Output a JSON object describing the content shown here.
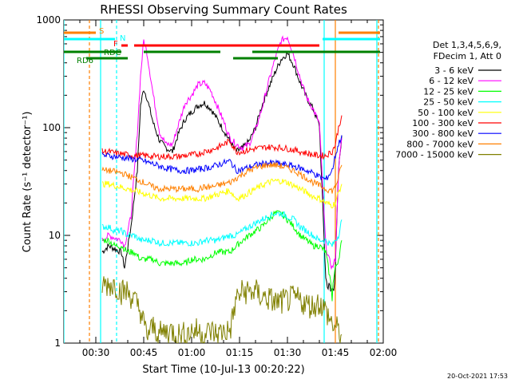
{
  "chart_data": {
    "type": "line",
    "title": "RHESSI Observing Summary Count Rates",
    "xlabel": "Start Time (10-Jul-13 00:20:22)",
    "ylabel": "Count Rate (s⁻¹ detector⁻¹)",
    "x_unit": "minutes after 00:20",
    "xlim": [
      0,
      100
    ],
    "ylim": [
      1,
      1000
    ],
    "yscale": "log",
    "x_ticks": [
      {
        "at": 10,
        "label": "00:30"
      },
      {
        "at": 25,
        "label": "00:45"
      },
      {
        "at": 40,
        "label": "01:00"
      },
      {
        "at": 55,
        "label": "01:15"
      },
      {
        "at": 70,
        "label": "01:30"
      },
      {
        "at": 85,
        "label": "01:45"
      },
      {
        "at": 100,
        "label": "02:00"
      }
    ],
    "y_ticks": [
      {
        "at": 1,
        "label": "1"
      },
      {
        "at": 10,
        "label": "10"
      },
      {
        "at": 100,
        "label": "100"
      },
      {
        "at": 1000,
        "label": "1000"
      }
    ],
    "legend_header": [
      "Det 1,3,4,5,6,9,",
      "FDecim 1, Att 0"
    ],
    "legend_position": "right",
    "series": [
      {
        "name": "3 - 6 keV",
        "color": "#000000",
        "x": [
          12,
          14,
          18,
          19,
          21,
          23,
          24,
          25,
          26,
          28,
          30,
          32,
          34,
          36,
          38,
          40,
          42,
          44,
          46,
          48,
          50,
          52,
          54,
          56,
          58,
          60,
          62,
          64,
          66,
          68,
          70,
          72,
          74,
          76,
          78,
          80,
          82,
          83,
          84,
          85,
          86,
          87
        ],
        "y": [
          7,
          8,
          7,
          5,
          12,
          40,
          160,
          230,
          190,
          110,
          75,
          65,
          60,
          90,
          120,
          140,
          160,
          170,
          150,
          120,
          95,
          75,
          60,
          65,
          75,
          100,
          160,
          230,
          320,
          430,
          490,
          380,
          260,
          190,
          150,
          105,
          4,
          3,
          3,
          5,
          40,
          85
        ]
      },
      {
        "name": "6 - 12 keV",
        "color": "#ff00ff",
        "x": [
          12,
          14,
          18,
          19,
          21,
          23,
          24,
          25,
          26,
          28,
          30,
          32,
          34,
          36,
          38,
          40,
          42,
          44,
          46,
          48,
          50,
          52,
          54,
          56,
          58,
          60,
          62,
          64,
          66,
          68,
          70,
          72,
          74,
          76,
          78,
          80,
          82,
          83,
          84,
          85,
          86,
          87
        ],
        "y": [
          9,
          10,
          9,
          8,
          15,
          90,
          300,
          650,
          500,
          200,
          90,
          70,
          70,
          110,
          170,
          200,
          250,
          260,
          220,
          160,
          115,
          80,
          70,
          65,
          70,
          95,
          150,
          260,
          420,
          640,
          700,
          470,
          290,
          190,
          150,
          110,
          8,
          6,
          5,
          6,
          40,
          80
        ]
      },
      {
        "name": "12 - 25 keV",
        "color": "#00ff00",
        "x": [
          12,
          14,
          16,
          18,
          20,
          22,
          24,
          26,
          28,
          30,
          32,
          34,
          36,
          38,
          40,
          42,
          44,
          46,
          48,
          50,
          52,
          54,
          56,
          58,
          60,
          62,
          64,
          66,
          68,
          70,
          72,
          74,
          76,
          78,
          80,
          82,
          84,
          85,
          86,
          87
        ],
        "y": [
          9,
          9,
          8,
          8,
          7,
          7,
          6,
          6,
          6,
          5.5,
          5.5,
          5.5,
          5.5,
          5.5,
          6,
          6,
          6,
          6.5,
          7,
          7,
          7,
          8,
          9,
          10,
          11,
          12,
          14,
          16,
          16,
          14,
          12,
          10,
          9,
          8,
          8,
          7,
          3,
          5,
          6,
          9
        ]
      },
      {
        "name": "25 - 50 keV",
        "color": "#00ffff",
        "x": [
          12,
          14,
          16,
          18,
          20,
          22,
          24,
          26,
          28,
          30,
          32,
          34,
          36,
          38,
          40,
          42,
          44,
          46,
          48,
          50,
          52,
          54,
          56,
          58,
          60,
          62,
          64,
          66,
          68,
          70,
          72,
          74,
          76,
          78,
          80,
          82,
          84,
          85,
          86,
          87
        ],
        "y": [
          12,
          12,
          11,
          11,
          10,
          10,
          9,
          9,
          9,
          8.5,
          8.5,
          8.5,
          8.5,
          8.5,
          8.5,
          8.5,
          9,
          9,
          9,
          9.5,
          10,
          10,
          11,
          12,
          13,
          14,
          15,
          16,
          16,
          15,
          14,
          12,
          11,
          10,
          9,
          9,
          8,
          9,
          10,
          14
        ]
      },
      {
        "name": "50 - 100 keV",
        "color": "#ffff00",
        "x": [
          12,
          14,
          16,
          18,
          20,
          22,
          24,
          26,
          28,
          30,
          32,
          34,
          36,
          38,
          40,
          42,
          44,
          46,
          48,
          50,
          52,
          54,
          56,
          58,
          60,
          62,
          64,
          66,
          68,
          70,
          72,
          74,
          76,
          78,
          80,
          82,
          84,
          85,
          86,
          87
        ],
        "y": [
          30,
          30,
          29,
          28,
          27,
          26,
          25,
          24,
          23,
          22,
          22,
          22,
          22,
          22,
          22,
          22,
          22,
          23,
          24,
          25,
          26,
          22,
          23,
          25,
          27,
          29,
          31,
          32,
          32,
          31,
          29,
          27,
          25,
          23,
          22,
          20,
          19,
          20,
          25,
          30
        ]
      },
      {
        "name": "100 - 300 keV",
        "color": "#ff0000",
        "x": [
          12,
          14,
          16,
          18,
          20,
          22,
          24,
          26,
          28,
          30,
          32,
          34,
          36,
          38,
          40,
          42,
          44,
          46,
          48,
          50,
          52,
          54,
          56,
          58,
          60,
          62,
          64,
          66,
          68,
          70,
          72,
          74,
          76,
          78,
          80,
          82,
          84,
          85,
          86,
          87
        ],
        "y": [
          60,
          60,
          58,
          57,
          56,
          55,
          55,
          55,
          54,
          54,
          54,
          54,
          54,
          55,
          56,
          57,
          60,
          62,
          65,
          70,
          75,
          60,
          60,
          62,
          64,
          65,
          66,
          66,
          65,
          64,
          62,
          60,
          58,
          56,
          55,
          55,
          60,
          70,
          100,
          130
        ]
      },
      {
        "name": "300 - 800 keV",
        "color": "#0000ff",
        "x": [
          12,
          14,
          16,
          18,
          20,
          22,
          24,
          26,
          28,
          30,
          32,
          34,
          36,
          38,
          40,
          42,
          44,
          46,
          48,
          50,
          52,
          54,
          56,
          58,
          60,
          62,
          64,
          66,
          68,
          70,
          72,
          74,
          76,
          78,
          80,
          82,
          84,
          85,
          86,
          87
        ],
        "y": [
          55,
          55,
          54,
          53,
          52,
          51,
          50,
          48,
          46,
          44,
          42,
          41,
          40,
          40,
          40,
          41,
          42,
          43,
          45,
          47,
          49,
          40,
          41,
          43,
          45,
          46,
          47,
          47,
          46,
          45,
          44,
          42,
          40,
          38,
          35,
          33,
          40,
          55,
          70,
          85
        ]
      },
      {
        "name": "800 - 7000 keV",
        "color": "#ff8000",
        "x": [
          12,
          14,
          16,
          18,
          20,
          22,
          24,
          26,
          28,
          30,
          32,
          34,
          36,
          38,
          40,
          42,
          44,
          46,
          48,
          50,
          52,
          54,
          56,
          58,
          60,
          62,
          64,
          66,
          68,
          70,
          72,
          74,
          76,
          78,
          80,
          82,
          84,
          85,
          86,
          87
        ],
        "y": [
          40,
          40,
          39,
          38,
          36,
          34,
          32,
          30,
          28,
          27,
          27,
          27,
          27,
          27,
          27,
          27,
          28,
          28,
          29,
          30,
          31,
          34,
          37,
          40,
          42,
          44,
          45,
          45,
          44,
          42,
          40,
          37,
          34,
          31,
          29,
          27,
          26,
          28,
          35,
          45
        ]
      },
      {
        "name": "7000 - 15000 keV",
        "color": "#808000",
        "x": [
          12,
          14,
          16,
          18,
          20,
          22,
          24,
          25,
          26,
          28,
          30,
          32,
          34,
          36,
          38,
          40,
          42,
          44,
          46,
          48,
          50,
          52,
          53,
          54,
          56,
          58,
          60,
          62,
          64,
          66,
          68,
          70,
          72,
          74,
          76,
          78,
          80,
          82,
          84,
          86,
          87
        ],
        "y": [
          3.5,
          3.5,
          3.5,
          3,
          3,
          2.5,
          2,
          1.5,
          1.2,
          1.4,
          1.2,
          1.3,
          1.3,
          1.2,
          1.2,
          1.3,
          1.3,
          1.2,
          1.3,
          1.2,
          1.3,
          1.3,
          1.8,
          2.6,
          3,
          3,
          3,
          2.7,
          2.6,
          2.4,
          2.4,
          2.5,
          2.6,
          2.5,
          2.3,
          2.2,
          2.4,
          2,
          1.5,
          1.3,
          1.2
        ]
      }
    ],
    "state_bars": [
      {
        "label": "S",
        "color": "#ff8000",
        "segments": [
          [
            -10,
            10
          ],
          [
            86,
            99
          ]
        ],
        "level": 0
      },
      {
        "label": "N",
        "color": "#00ffff",
        "segments": [
          [
            -10,
            16
          ],
          [
            81,
            99
          ]
        ],
        "level": 1
      },
      {
        "label": "F",
        "color": "#ff0000",
        "segments": [
          [
            18,
            20
          ],
          [
            22,
            80
          ]
        ],
        "level": 2
      },
      {
        "label": "RDC",
        "color": "#008000",
        "segments": [
          [
            -10,
            18
          ],
          [
            25,
            49
          ],
          [
            59,
            99
          ]
        ],
        "level": 3
      },
      {
        "label": "RD6",
        "color": "#008000",
        "segments": [
          [
            7,
            20
          ],
          [
            53,
            67
          ]
        ],
        "level": 4
      }
    ],
    "vlines": [
      {
        "x": 0,
        "color": "#00ffff",
        "style": "solid"
      },
      {
        "x": 8,
        "color": "#ff8000",
        "style": "dashed"
      },
      {
        "x": 11.5,
        "color": "#00ffff",
        "style": "solid"
      },
      {
        "x": 16.5,
        "color": "#00ffff",
        "style": "dashed"
      },
      {
        "x": 81.5,
        "color": "#00ffff",
        "style": "solid"
      },
      {
        "x": 85,
        "color": "#ff8000",
        "style": "solid"
      },
      {
        "x": 98,
        "color": "#00ffff",
        "style": "solid"
      },
      {
        "x": 98.5,
        "color": "#ff8000",
        "style": "dashed"
      }
    ]
  },
  "footer": {
    "timestamp": "20-Oct-2021 17:53"
  }
}
